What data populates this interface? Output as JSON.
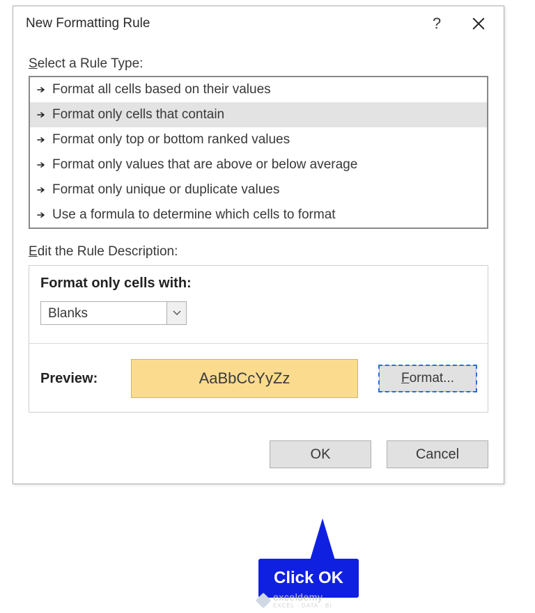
{
  "dialog": {
    "title": "New Formatting Rule",
    "section_select_label_pre": "S",
    "section_select_label_rest": "elect a Rule Type:",
    "rule_types": [
      {
        "label": "Format all cells based on their values",
        "selected": false
      },
      {
        "label": "Format only cells that contain",
        "selected": true
      },
      {
        "label": "Format only top or bottom ranked values",
        "selected": false
      },
      {
        "label": "Format only values that are above or below average",
        "selected": false
      },
      {
        "label": "Format only unique or duplicate values",
        "selected": false
      },
      {
        "label": "Use a formula to determine which cells to format",
        "selected": false
      }
    ],
    "section_edit_label_pre": "E",
    "section_edit_label_rest": "dit the Rule Description:",
    "format_only_label": "Format only cells with:",
    "dropdown_value": "Blanks",
    "preview_label": "Preview:",
    "preview_sample": "AaBbCcYyZz",
    "preview_bg": "#fbdc8f",
    "preview_border": "#c8b475",
    "format_button_pre": "F",
    "format_button_rest": "ormat...",
    "ok_label": "OK",
    "cancel_label": "Cancel"
  },
  "callout": {
    "text": "Click OK",
    "color": "#1020e0"
  },
  "watermark": {
    "brand": "exceldemy",
    "tagline": "EXCEL · DATA · BI"
  }
}
